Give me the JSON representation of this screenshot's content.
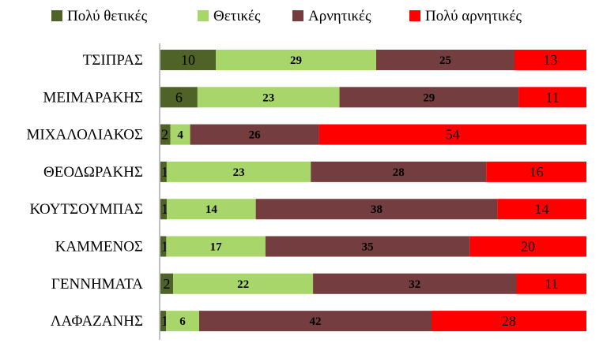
{
  "chart_data": {
    "type": "bar",
    "orientation": "horizontal",
    "stacked": true,
    "normalized_100": true,
    "title": "",
    "xlabel": "",
    "ylabel": "",
    "legend_position": "top",
    "categories": [
      "ΤΣΙΠΡΑΣ",
      "ΜΕΙΜΑΡΑΚΗΣ",
      "ΜΙΧΑΛΟΛΙΑΚΟΣ",
      "ΘΕΟΔΩΡΑΚΗΣ",
      "ΚΟΥΤΣΟΥΜΠΑΣ",
      "ΚΑΜΜΕΝΟΣ",
      "ΓΕΝΝΗΜΑΤΑ",
      "ΛΑΦΑΖΑΝΗΣ"
    ],
    "series": [
      {
        "name": "Πολύ θετικές",
        "color": "#4f6228",
        "label_style": "plain",
        "values": [
          10,
          6,
          2,
          1,
          1,
          1,
          2,
          1
        ]
      },
      {
        "name": "Θετικές",
        "color": "#a9d66a",
        "label_style": "bold",
        "values": [
          29,
          23,
          4,
          23,
          14,
          17,
          22,
          6
        ]
      },
      {
        "name": "Αρνητικές",
        "color": "#743d3f",
        "label_style": "bold",
        "values": [
          25,
          29,
          26,
          28,
          38,
          35,
          32,
          42
        ]
      },
      {
        "name": "Πολύ αρνητικές",
        "color": "#ff0000",
        "label_style": "plain",
        "values": [
          13,
          11,
          54,
          16,
          14,
          20,
          11,
          28
        ]
      }
    ]
  }
}
